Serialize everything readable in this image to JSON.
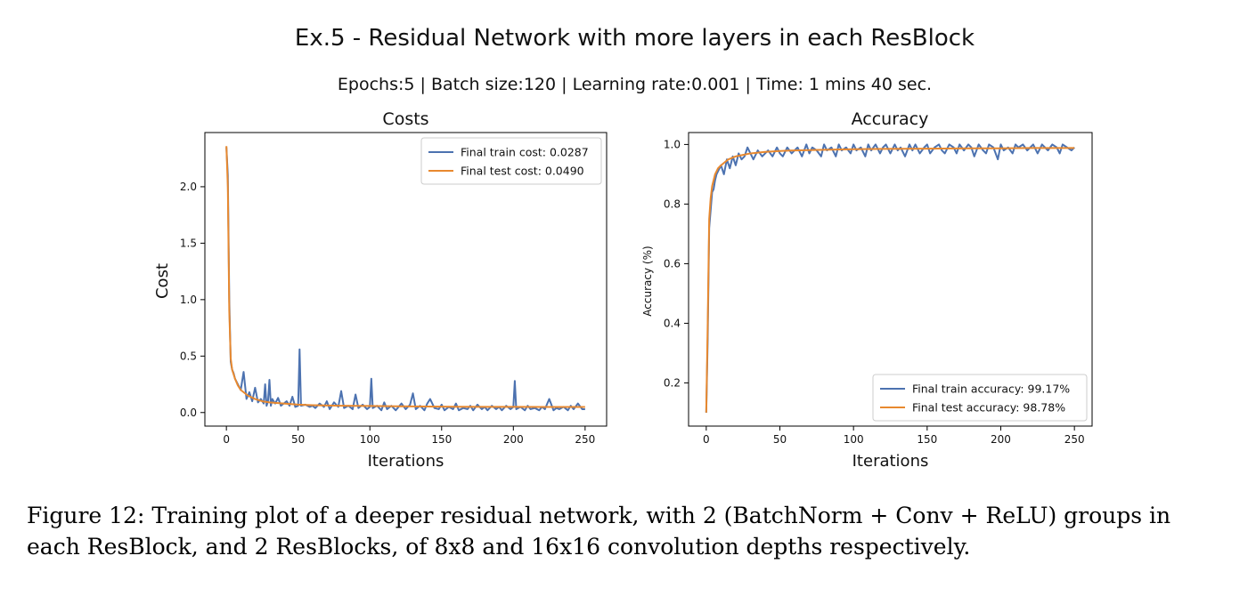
{
  "suptitle": "Ex.5  - Residual Network with more layers in each ResBlock",
  "subtitle": "Epochs:5 | Batch size:120 | Learning rate:0.001 | Time: 1 mins 40 sec.",
  "colors": {
    "train": "#4c72b0",
    "test": "#e8892f"
  },
  "chart_data": [
    {
      "type": "line",
      "title": "Costs",
      "xlabel": "Iterations",
      "ylabel": "Cost",
      "xlim": [
        -15,
        265
      ],
      "ylim": [
        -0.12,
        2.48
      ],
      "xticks": [
        0,
        50,
        100,
        150,
        200,
        250
      ],
      "yticks": [
        0.0,
        0.5,
        1.0,
        1.5,
        2.0
      ],
      "ytick_labels": [
        "0.0",
        "0.5",
        "1.0",
        "1.5",
        "2.0"
      ],
      "legend_position": "top-right",
      "grid": false,
      "series": [
        {
          "name": "Final train cost: 0.0287",
          "color": "#4c72b0",
          "x": [
            0,
            1,
            2,
            3,
            4,
            5,
            6,
            8,
            10,
            12,
            14,
            16,
            18,
            20,
            22,
            24,
            26,
            27,
            28,
            29,
            30,
            31,
            32,
            34,
            36,
            38,
            40,
            42,
            44,
            46,
            48,
            50,
            51,
            52,
            55,
            58,
            60,
            62,
            65,
            68,
            70,
            72,
            75,
            78,
            80,
            82,
            85,
            88,
            90,
            92,
            95,
            98,
            100,
            101,
            102,
            105,
            108,
            110,
            112,
            115,
            118,
            120,
            122,
            125,
            128,
            130,
            132,
            135,
            138,
            140,
            142,
            145,
            148,
            150,
            152,
            155,
            158,
            160,
            162,
            165,
            168,
            170,
            172,
            175,
            178,
            180,
            182,
            185,
            188,
            190,
            192,
            195,
            198,
            200,
            201,
            202,
            205,
            208,
            210,
            212,
            215,
            218,
            220,
            222,
            225,
            228,
            230,
            232,
            235,
            238,
            240,
            242,
            245,
            248,
            250
          ],
          "y": [
            2.35,
            2.1,
            1.0,
            0.45,
            0.38,
            0.35,
            0.3,
            0.25,
            0.2,
            0.36,
            0.12,
            0.18,
            0.1,
            0.22,
            0.09,
            0.12,
            0.08,
            0.25,
            0.06,
            0.1,
            0.29,
            0.06,
            0.12,
            0.08,
            0.13,
            0.06,
            0.08,
            0.1,
            0.06,
            0.14,
            0.05,
            0.06,
            0.56,
            0.06,
            0.07,
            0.05,
            0.06,
            0.04,
            0.08,
            0.05,
            0.1,
            0.03,
            0.09,
            0.05,
            0.19,
            0.04,
            0.06,
            0.03,
            0.16,
            0.04,
            0.07,
            0.03,
            0.05,
            0.3,
            0.04,
            0.06,
            0.02,
            0.09,
            0.03,
            0.06,
            0.02,
            0.05,
            0.08,
            0.03,
            0.07,
            0.17,
            0.03,
            0.06,
            0.02,
            0.08,
            0.12,
            0.04,
            0.03,
            0.07,
            0.02,
            0.05,
            0.03,
            0.08,
            0.02,
            0.04,
            0.03,
            0.06,
            0.02,
            0.07,
            0.03,
            0.05,
            0.02,
            0.06,
            0.03,
            0.05,
            0.02,
            0.06,
            0.03,
            0.05,
            0.28,
            0.03,
            0.05,
            0.02,
            0.06,
            0.03,
            0.04,
            0.02,
            0.05,
            0.03,
            0.12,
            0.02,
            0.04,
            0.03,
            0.05,
            0.02,
            0.06,
            0.03,
            0.08,
            0.03,
            0.03
          ]
        },
        {
          "name": "Final test cost: 0.0490",
          "color": "#e8892f",
          "x": [
            0,
            1,
            2,
            3,
            4,
            6,
            8,
            10,
            15,
            20,
            25,
            30,
            40,
            50,
            60,
            80,
            100,
            120,
            150,
            180,
            200,
            220,
            250
          ],
          "y": [
            2.36,
            2.0,
            0.9,
            0.48,
            0.38,
            0.3,
            0.24,
            0.2,
            0.15,
            0.12,
            0.1,
            0.09,
            0.08,
            0.07,
            0.065,
            0.06,
            0.058,
            0.055,
            0.052,
            0.05,
            0.05,
            0.049,
            0.049
          ]
        }
      ]
    },
    {
      "type": "line",
      "title": "Accuracy",
      "xlabel": "Iterations",
      "ylabel": "Accuracy (%)",
      "xlim": [
        -12,
        262
      ],
      "ylim": [
        0.055,
        1.04
      ],
      "xticks": [
        0,
        50,
        100,
        150,
        200,
        250
      ],
      "yticks": [
        0.2,
        0.4,
        0.6,
        0.8,
        1.0
      ],
      "ytick_labels": [
        "0.2",
        "0.4",
        "0.6",
        "0.8",
        "1.0"
      ],
      "legend_position": "bottom-right",
      "grid": false,
      "series": [
        {
          "name": "Final train accuracy: 99.17%",
          "color": "#4c72b0",
          "x": [
            0,
            1,
            2,
            3,
            4,
            5,
            6,
            7,
            8,
            10,
            12,
            14,
            16,
            18,
            20,
            22,
            24,
            26,
            28,
            30,
            32,
            35,
            38,
            40,
            42,
            45,
            48,
            50,
            52,
            55,
            58,
            60,
            62,
            65,
            68,
            70,
            72,
            75,
            78,
            80,
            82,
            85,
            88,
            90,
            92,
            95,
            98,
            100,
            102,
            105,
            108,
            110,
            112,
            115,
            118,
            120,
            122,
            125,
            128,
            130,
            132,
            135,
            138,
            140,
            142,
            145,
            148,
            150,
            152,
            155,
            158,
            160,
            162,
            165,
            168,
            170,
            172,
            175,
            178,
            180,
            182,
            185,
            188,
            190,
            192,
            195,
            198,
            200,
            202,
            205,
            208,
            210,
            212,
            215,
            218,
            220,
            222,
            225,
            228,
            230,
            232,
            235,
            238,
            240,
            242,
            245,
            248,
            250
          ],
          "y": [
            0.1,
            0.35,
            0.72,
            0.78,
            0.84,
            0.85,
            0.88,
            0.9,
            0.91,
            0.93,
            0.9,
            0.95,
            0.92,
            0.96,
            0.93,
            0.97,
            0.95,
            0.96,
            0.99,
            0.97,
            0.95,
            0.98,
            0.96,
            0.97,
            0.98,
            0.96,
            0.99,
            0.97,
            0.96,
            0.99,
            0.97,
            0.98,
            0.99,
            0.96,
            1.0,
            0.97,
            0.99,
            0.98,
            0.96,
            1.0,
            0.98,
            0.99,
            0.96,
            1.0,
            0.98,
            0.99,
            0.97,
            1.0,
            0.98,
            0.99,
            0.96,
            1.0,
            0.98,
            1.0,
            0.97,
            0.99,
            1.0,
            0.97,
            1.0,
            0.98,
            0.99,
            0.96,
            1.0,
            0.98,
            1.0,
            0.97,
            0.99,
            1.0,
            0.97,
            0.99,
            1.0,
            0.98,
            0.97,
            1.0,
            0.99,
            0.97,
            1.0,
            0.98,
            1.0,
            0.99,
            0.96,
            1.0,
            0.98,
            0.97,
            1.0,
            0.99,
            0.95,
            1.0,
            0.98,
            0.99,
            0.97,
            1.0,
            0.99,
            1.0,
            0.98,
            0.99,
            1.0,
            0.97,
            1.0,
            0.99,
            0.98,
            1.0,
            0.99,
            0.97,
            1.0,
            0.99,
            0.98,
            0.99
          ]
        },
        {
          "name": "Final test accuracy: 98.78%",
          "color": "#e8892f",
          "x": [
            0,
            1,
            2,
            3,
            4,
            6,
            8,
            10,
            15,
            20,
            25,
            30,
            40,
            50,
            60,
            80,
            100,
            120,
            150,
            180,
            200,
            220,
            250
          ],
          "y": [
            0.1,
            0.4,
            0.75,
            0.82,
            0.86,
            0.9,
            0.92,
            0.93,
            0.95,
            0.96,
            0.965,
            0.97,
            0.975,
            0.978,
            0.98,
            0.982,
            0.984,
            0.985,
            0.986,
            0.987,
            0.987,
            0.988,
            0.988
          ]
        }
      ]
    }
  ],
  "caption": {
    "line1": "Figure 12: Training plot of a deeper residual network, with 2 (BatchNorm + Conv + ReLU) groups in",
    "line2": "each ResBlock, and 2 ResBlocks, of 8x8 and 16x16 convolution depths respectively."
  }
}
